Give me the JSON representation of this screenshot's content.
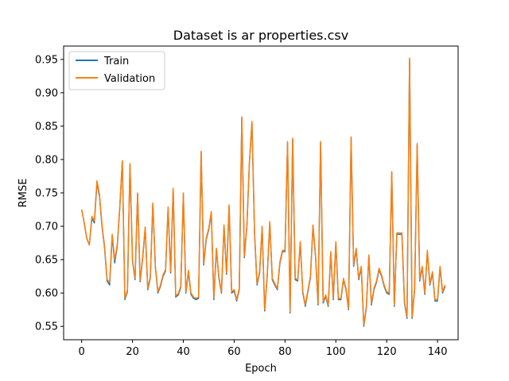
{
  "chart_data": {
    "type": "line",
    "title": "Dataset is ar properties.csv",
    "xlabel": "Epoch",
    "ylabel": "RMSE",
    "xlim": [
      -7.1,
      148.1
    ],
    "ylim": [
      0.53,
      0.97
    ],
    "xticks": [
      0,
      20,
      40,
      60,
      80,
      100,
      120,
      140
    ],
    "yticks": [
      0.55,
      0.6,
      0.65,
      0.7,
      0.75,
      0.8,
      0.85,
      0.9,
      0.95
    ],
    "grid": false,
    "legend": "top-left",
    "colors": {
      "train": "#1f77b4",
      "validation": "#ff7f0e",
      "axes": "#000000",
      "background": "#ffffff"
    },
    "series": [
      {
        "name": "Train",
        "values": [
          0.725,
          0.705,
          0.682,
          0.672,
          0.712,
          0.705,
          0.765,
          0.745,
          0.7,
          0.668,
          0.618,
          0.612,
          0.685,
          0.645,
          0.67,
          0.728,
          0.798,
          0.59,
          0.602,
          0.792,
          0.648,
          0.62,
          0.748,
          0.617,
          0.652,
          0.697,
          0.605,
          0.622,
          0.733,
          0.638,
          0.6,
          0.61,
          0.625,
          0.633,
          0.727,
          0.63,
          0.755,
          0.594,
          0.597,
          0.608,
          0.748,
          0.6,
          0.632,
          0.598,
          0.592,
          0.59,
          0.592,
          0.812,
          0.642,
          0.68,
          0.695,
          0.72,
          0.59,
          0.665,
          0.622,
          0.6,
          0.7,
          0.628,
          0.73,
          0.6,
          0.603,
          0.588,
          0.605,
          0.862,
          0.653,
          0.7,
          0.795,
          0.855,
          0.69,
          0.612,
          0.63,
          0.698,
          0.573,
          0.625,
          0.705,
          0.62,
          0.612,
          0.605,
          0.645,
          0.662,
          0.662,
          0.825,
          0.57,
          0.83,
          0.62,
          0.618,
          0.675,
          0.6,
          0.58,
          0.602,
          0.623,
          0.7,
          0.655,
          0.582,
          0.825,
          0.585,
          0.595,
          0.58,
          0.66,
          0.59,
          0.675,
          0.59,
          0.59,
          0.62,
          0.605,
          0.575,
          0.832,
          0.64,
          0.665,
          0.62,
          0.638,
          0.55,
          0.578,
          0.655,
          0.582,
          0.605,
          0.616,
          0.635,
          0.625,
          0.61,
          0.6,
          0.598,
          0.78,
          0.58,
          0.688,
          0.688,
          0.688,
          0.585,
          0.562,
          0.95,
          0.562,
          0.605,
          0.822,
          0.618,
          0.638,
          0.598,
          0.662,
          0.612,
          0.63,
          0.588,
          0.588,
          0.638,
          0.6,
          0.61
        ]
      },
      {
        "name": "Validation",
        "values": [
          0.725,
          0.705,
          0.682,
          0.672,
          0.715,
          0.708,
          0.768,
          0.748,
          0.702,
          0.67,
          0.62,
          0.616,
          0.688,
          0.65,
          0.672,
          0.73,
          0.798,
          0.592,
          0.604,
          0.794,
          0.65,
          0.622,
          0.75,
          0.619,
          0.654,
          0.699,
          0.607,
          0.624,
          0.735,
          0.64,
          0.602,
          0.612,
          0.627,
          0.635,
          0.729,
          0.632,
          0.757,
          0.596,
          0.599,
          0.61,
          0.75,
          0.602,
          0.634,
          0.6,
          0.594,
          0.592,
          0.594,
          0.812,
          0.644,
          0.682,
          0.697,
          0.722,
          0.592,
          0.667,
          0.624,
          0.602,
          0.702,
          0.63,
          0.732,
          0.602,
          0.605,
          0.59,
          0.607,
          0.864,
          0.655,
          0.702,
          0.797,
          0.857,
          0.692,
          0.614,
          0.632,
          0.7,
          0.575,
          0.627,
          0.707,
          0.622,
          0.614,
          0.607,
          0.647,
          0.664,
          0.664,
          0.827,
          0.572,
          0.832,
          0.622,
          0.62,
          0.677,
          0.602,
          0.582,
          0.604,
          0.625,
          0.702,
          0.657,
          0.584,
          0.827,
          0.587,
          0.597,
          0.582,
          0.662,
          0.592,
          0.677,
          0.592,
          0.592,
          0.622,
          0.607,
          0.577,
          0.834,
          0.642,
          0.667,
          0.622,
          0.64,
          0.552,
          0.58,
          0.657,
          0.584,
          0.607,
          0.618,
          0.637,
          0.627,
          0.612,
          0.602,
          0.6,
          0.782,
          0.582,
          0.69,
          0.69,
          0.69,
          0.587,
          0.564,
          0.952,
          0.564,
          0.607,
          0.824,
          0.62,
          0.64,
          0.6,
          0.664,
          0.614,
          0.632,
          0.59,
          0.59,
          0.64,
          0.602,
          0.612
        ]
      }
    ]
  }
}
